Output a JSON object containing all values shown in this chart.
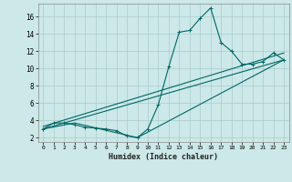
{
  "xlabel": "Humidex (Indice chaleur)",
  "ylabel": "",
  "bg_color": "#cce8e8",
  "grid_color": "#aacccc",
  "line_color": "#006666",
  "xlim": [
    -0.5,
    23.5
  ],
  "ylim": [
    1.5,
    17.5
  ],
  "xticks": [
    0,
    1,
    2,
    3,
    4,
    5,
    6,
    7,
    8,
    9,
    10,
    11,
    12,
    13,
    14,
    15,
    16,
    17,
    18,
    19,
    20,
    21,
    22,
    23
  ],
  "yticks": [
    2,
    4,
    6,
    8,
    10,
    12,
    14,
    16
  ],
  "line1_x": [
    0,
    1,
    2,
    3,
    4,
    5,
    6,
    7,
    8,
    9,
    10,
    11,
    12,
    13,
    14,
    15,
    16,
    17,
    18,
    19,
    20,
    21,
    22,
    23
  ],
  "line1_y": [
    3.0,
    3.7,
    3.7,
    3.5,
    3.2,
    3.1,
    3.0,
    2.8,
    2.2,
    2.0,
    3.0,
    5.8,
    10.2,
    14.2,
    14.4,
    15.8,
    17.0,
    13.0,
    12.0,
    10.5,
    10.5,
    10.8,
    11.8,
    11.0
  ],
  "line2_x": [
    0,
    23
  ],
  "line2_y": [
    3.0,
    11.0
  ],
  "line3_x": [
    0,
    3,
    9,
    23
  ],
  "line3_y": [
    3.0,
    3.7,
    2.0,
    11.0
  ],
  "line4_x": [
    0,
    23
  ],
  "line4_y": [
    3.3,
    11.8
  ]
}
